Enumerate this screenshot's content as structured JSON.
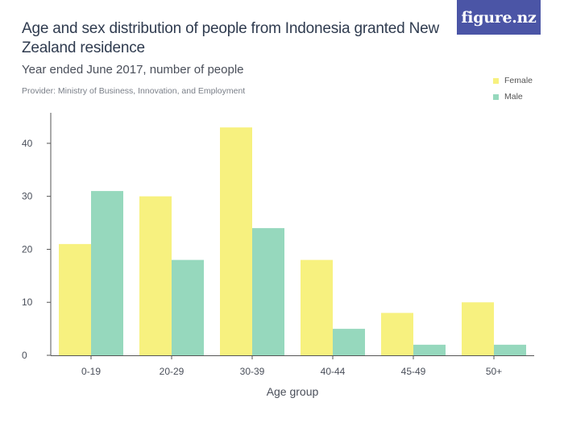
{
  "header": {
    "title": "Age and sex distribution of people from Indonesia granted New Zealand residence",
    "subtitle": "Year ended June 2017, number of people",
    "provider": "Provider: Ministry of Business, Innovation, and Employment",
    "logo_text": "figure.nz"
  },
  "colors": {
    "female": "#f7f17f",
    "male": "#96d8bd",
    "logo_bg": "#4b55a6"
  },
  "chart_data": {
    "type": "bar",
    "title": "Age and sex distribution of people from Indonesia granted New Zealand residence",
    "subtitle": "Year ended June 2017, number of people",
    "xlabel": "Age group",
    "ylabel": "",
    "categories": [
      "0-19",
      "20-29",
      "30-39",
      "40-44",
      "45-49",
      "50+"
    ],
    "series": [
      {
        "name": "Female",
        "values": [
          21,
          30,
          43,
          18,
          8,
          10
        ]
      },
      {
        "name": "Male",
        "values": [
          31,
          18,
          24,
          5,
          2,
          2
        ]
      }
    ],
    "ylim": [
      0,
      45
    ],
    "yticks": [
      0,
      10,
      20,
      30,
      40
    ],
    "grid": false,
    "legend_position": "top-right"
  }
}
